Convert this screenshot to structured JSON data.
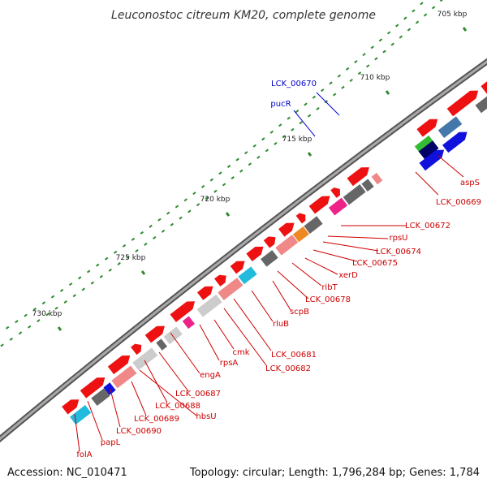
{
  "title": "Leuconostoc citreum KM20, complete genome",
  "footer": {
    "accession": "Accession: NC_010471",
    "summary": "Topology: circular; Length: 1,796,284 bp; Genes: 1,784"
  },
  "colors": {
    "backbone": "#7f7f7f",
    "tick": "#2e8b2e",
    "label_red": "#cc0000",
    "label_blue": "#0000cc",
    "red": "#ee1111",
    "pink": "#f08888",
    "gray": "#cccccc",
    "dark": "#666666",
    "cyan": "#22bbdd",
    "blue": "#1111dd",
    "steel": "#4477aa",
    "green": "#33bb33",
    "navy": "#000066",
    "magenta": "#ee2288",
    "orange": "#ee8822"
  },
  "ticks": [
    {
      "label": "705 kbp"
    },
    {
      "label": "710 kbp"
    },
    {
      "label": "715 kbp"
    },
    {
      "label": "720 kbp"
    },
    {
      "label": "725 kbp"
    },
    {
      "label": "730 kbp"
    }
  ],
  "labels": [
    {
      "text": "LCK_00670",
      "color": "blue"
    },
    {
      "text": "pucR",
      "color": "blue"
    },
    {
      "text": "aspS",
      "color": "red"
    },
    {
      "text": "LCK_00669",
      "color": "red"
    },
    {
      "text": "LCK_00672",
      "color": "red"
    },
    {
      "text": "rpsU",
      "color": "red"
    },
    {
      "text": "LCK_00674",
      "color": "red"
    },
    {
      "text": "LCK_00675",
      "color": "red"
    },
    {
      "text": "xerD",
      "color": "red"
    },
    {
      "text": "ribT",
      "color": "red"
    },
    {
      "text": "LCK_00678",
      "color": "red"
    },
    {
      "text": "scpB",
      "color": "red"
    },
    {
      "text": "rluB",
      "color": "red"
    },
    {
      "text": "LCK_00681",
      "color": "red"
    },
    {
      "text": "LCK_00682",
      "color": "red"
    },
    {
      "text": "cmk",
      "color": "red"
    },
    {
      "text": "rpsA",
      "color": "red"
    },
    {
      "text": "engA",
      "color": "red"
    },
    {
      "text": "LCK_00687",
      "color": "red"
    },
    {
      "text": "LCK_00688",
      "color": "red"
    },
    {
      "text": "hbsU",
      "color": "red"
    },
    {
      "text": "LCK_00689",
      "color": "red"
    },
    {
      "text": "LCK_00690",
      "color": "red"
    },
    {
      "text": "papL",
      "color": "red"
    },
    {
      "text": "folA",
      "color": "red"
    }
  ]
}
